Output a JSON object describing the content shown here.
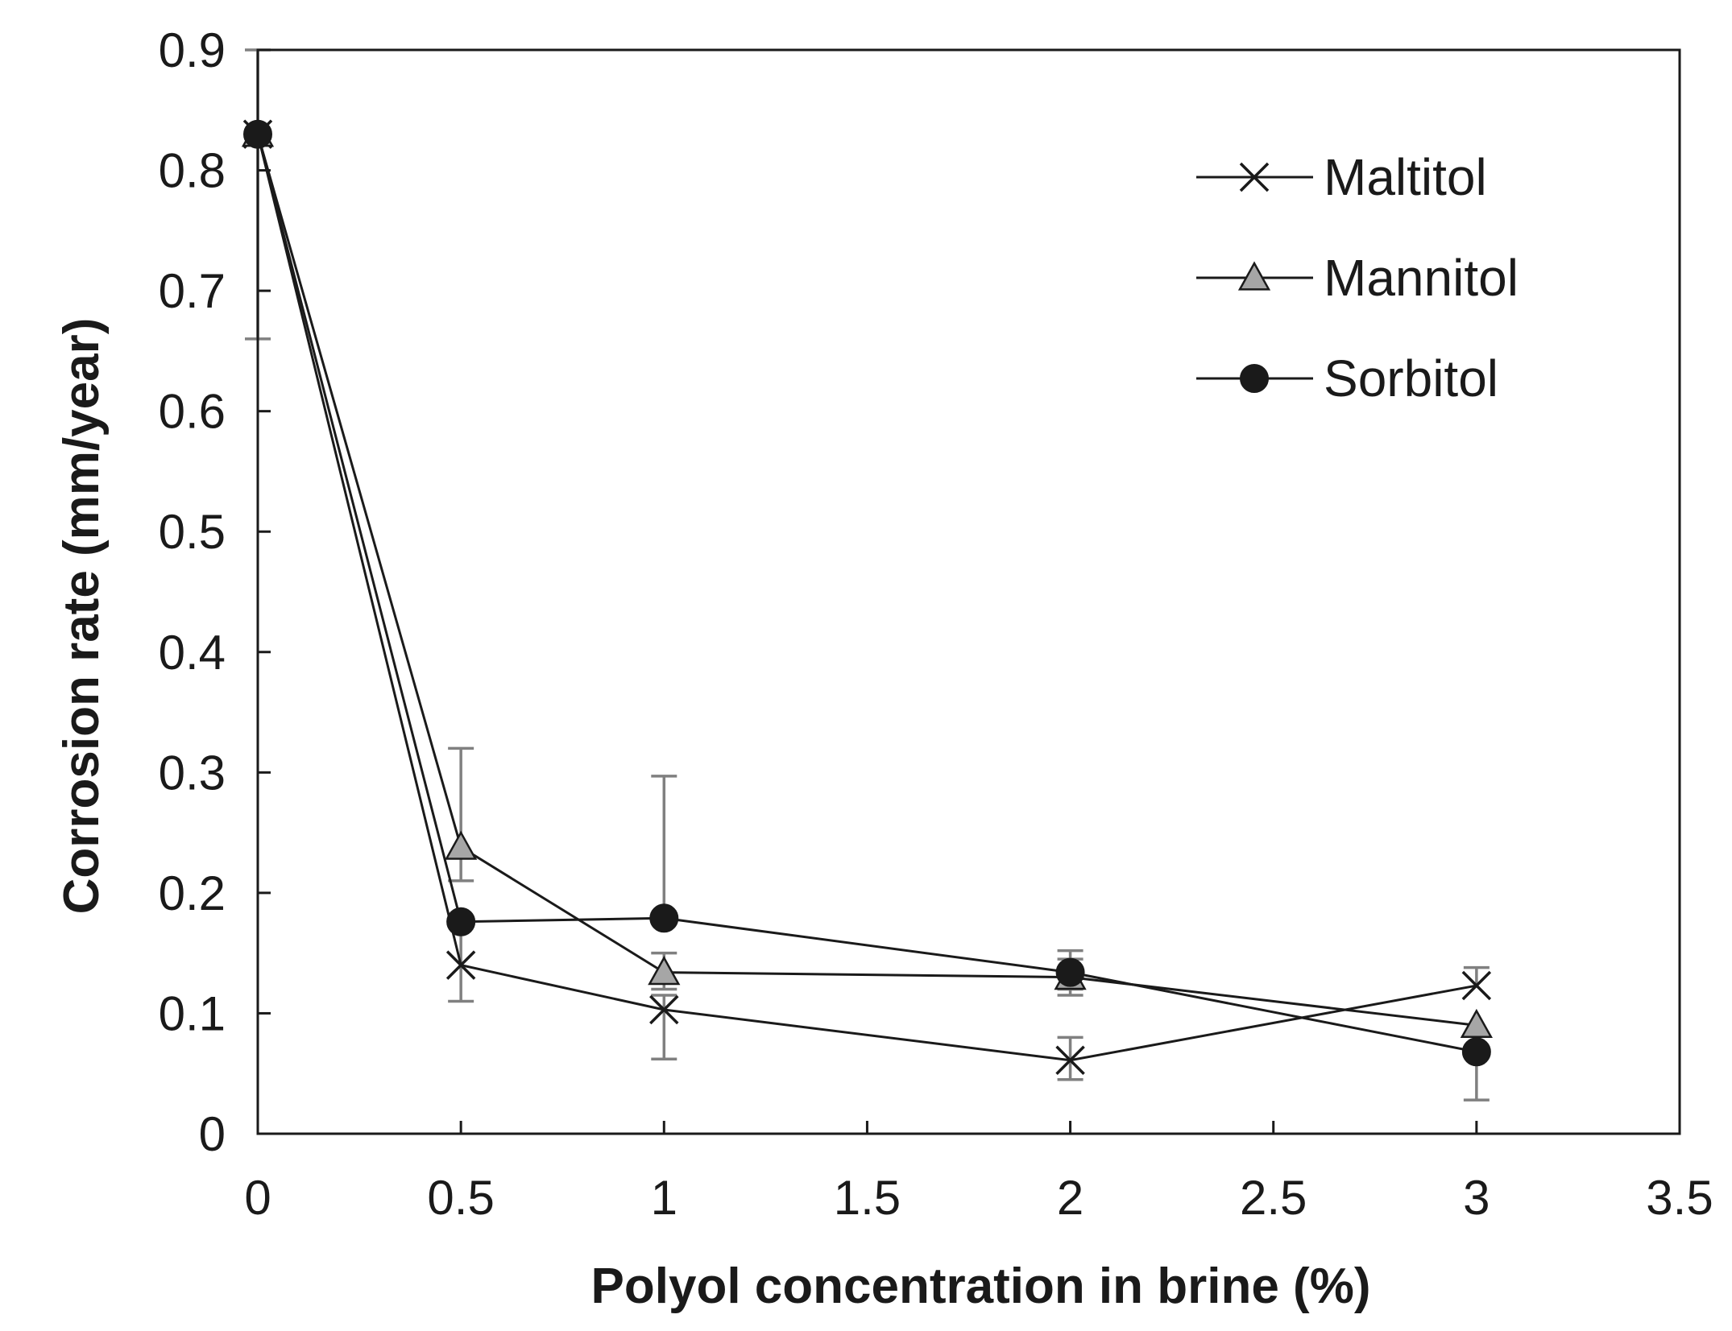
{
  "chart_data": {
    "type": "line",
    "title": "",
    "xlabel": "Polyol concentration in brine (%)",
    "ylabel": "Corrosion rate (mm/year)",
    "xlim": [
      0,
      3.5
    ],
    "ylim": [
      0,
      0.9
    ],
    "xticks": [
      0,
      0.5,
      1,
      1.5,
      2,
      2.5,
      3,
      3.5
    ],
    "yticks": [
      0,
      0.1,
      0.2,
      0.3,
      0.4,
      0.5,
      0.6,
      0.7,
      0.8,
      0.9
    ],
    "xtick_labels": [
      "0",
      "0.5",
      "1",
      "1.5",
      "2",
      "2.5",
      "3",
      "3.5"
    ],
    "ytick_labels": [
      "0",
      "0.1",
      "0.2",
      "0.3",
      "0.4",
      "0.5",
      "0.6",
      "0.7",
      "0.8",
      "0.9"
    ],
    "grid": false,
    "legend_position": "top-right",
    "x": [
      0,
      0.5,
      1,
      2,
      3
    ],
    "series": [
      {
        "name": "Maltitol",
        "marker": "x",
        "marker_color": "#1a1a1a",
        "values": [
          0.83,
          0.14,
          0.103,
          0.061,
          0.123
        ],
        "error_low": [
          0.83,
          0.11,
          0.062,
          0.045,
          0.123
        ],
        "error_high": [
          0.83,
          0.175,
          0.115,
          0.08,
          0.138
        ]
      },
      {
        "name": "Mannitol",
        "marker": "triangle",
        "marker_color": "#a6a6a6",
        "values": [
          0.83,
          0.238,
          0.134,
          0.13,
          0.09
        ],
        "error_low": [
          0.66,
          0.21,
          0.12,
          0.115,
          0.09
        ],
        "error_high": [
          0.9,
          0.32,
          0.15,
          0.145,
          0.09
        ]
      },
      {
        "name": "Sorbitol",
        "marker": "circle",
        "marker_color": "#1a1a1a",
        "values": [
          0.83,
          0.176,
          0.179,
          0.134,
          0.068
        ],
        "error_low": [
          0.83,
          0.176,
          0.179,
          0.12,
          0.028
        ],
        "error_high": [
          0.83,
          0.176,
          0.297,
          0.152,
          0.068
        ]
      }
    ]
  },
  "colors": {
    "axis": "#1a1a1a",
    "line": "#1a1a1a",
    "error_bar": "#808080"
  }
}
